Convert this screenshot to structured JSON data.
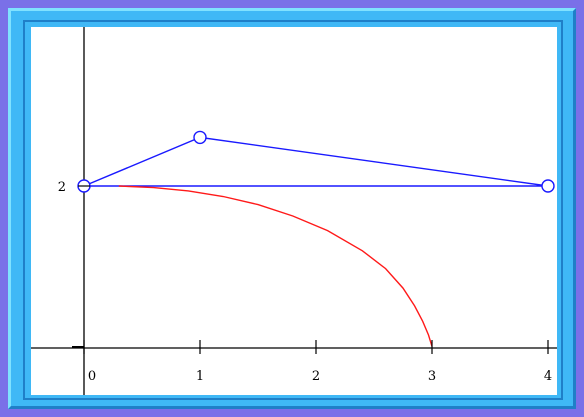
{
  "colors": {
    "page_background": "#7a70e8",
    "frame": "#3fb8f6",
    "plot_background": "#ffffff",
    "polygon": "#1a1aff",
    "curve": "#ff1a1a",
    "axes": "#000000"
  },
  "chart_data": {
    "type": "line",
    "title": "",
    "xlabel": "",
    "ylabel": "",
    "xlim": [
      -0.1,
      4.25
    ],
    "ylim": [
      0,
      2.65
    ],
    "grid": false,
    "x_ticks": [
      {
        "value": 0,
        "label": "0"
      },
      {
        "value": 1,
        "label": "1"
      },
      {
        "value": 2,
        "label": "2"
      },
      {
        "value": 3,
        "label": "3"
      },
      {
        "value": 4,
        "label": "4"
      }
    ],
    "y_ticks": [
      {
        "value": 2,
        "label": "2"
      }
    ],
    "series": [
      {
        "kind": "polygon",
        "color": "#1a1aff",
        "markers": "open-circle",
        "points": [
          [
            0,
            2
          ],
          [
            1,
            2.6
          ],
          [
            4,
            2
          ],
          [
            0,
            2
          ]
        ]
      },
      {
        "kind": "curve",
        "color": "#ff1a1a",
        "markers": "none",
        "points": [
          [
            0.3,
            2.0
          ],
          [
            0.6,
            1.98
          ],
          [
            0.9,
            1.94
          ],
          [
            1.2,
            1.87
          ],
          [
            1.5,
            1.77
          ],
          [
            1.8,
            1.63
          ],
          [
            2.1,
            1.45
          ],
          [
            2.4,
            1.2
          ],
          [
            2.6,
            0.98
          ],
          [
            2.75,
            0.74
          ],
          [
            2.85,
            0.52
          ],
          [
            2.92,
            0.33
          ],
          [
            2.97,
            0.16
          ],
          [
            3.0,
            0.02
          ]
        ]
      }
    ]
  }
}
